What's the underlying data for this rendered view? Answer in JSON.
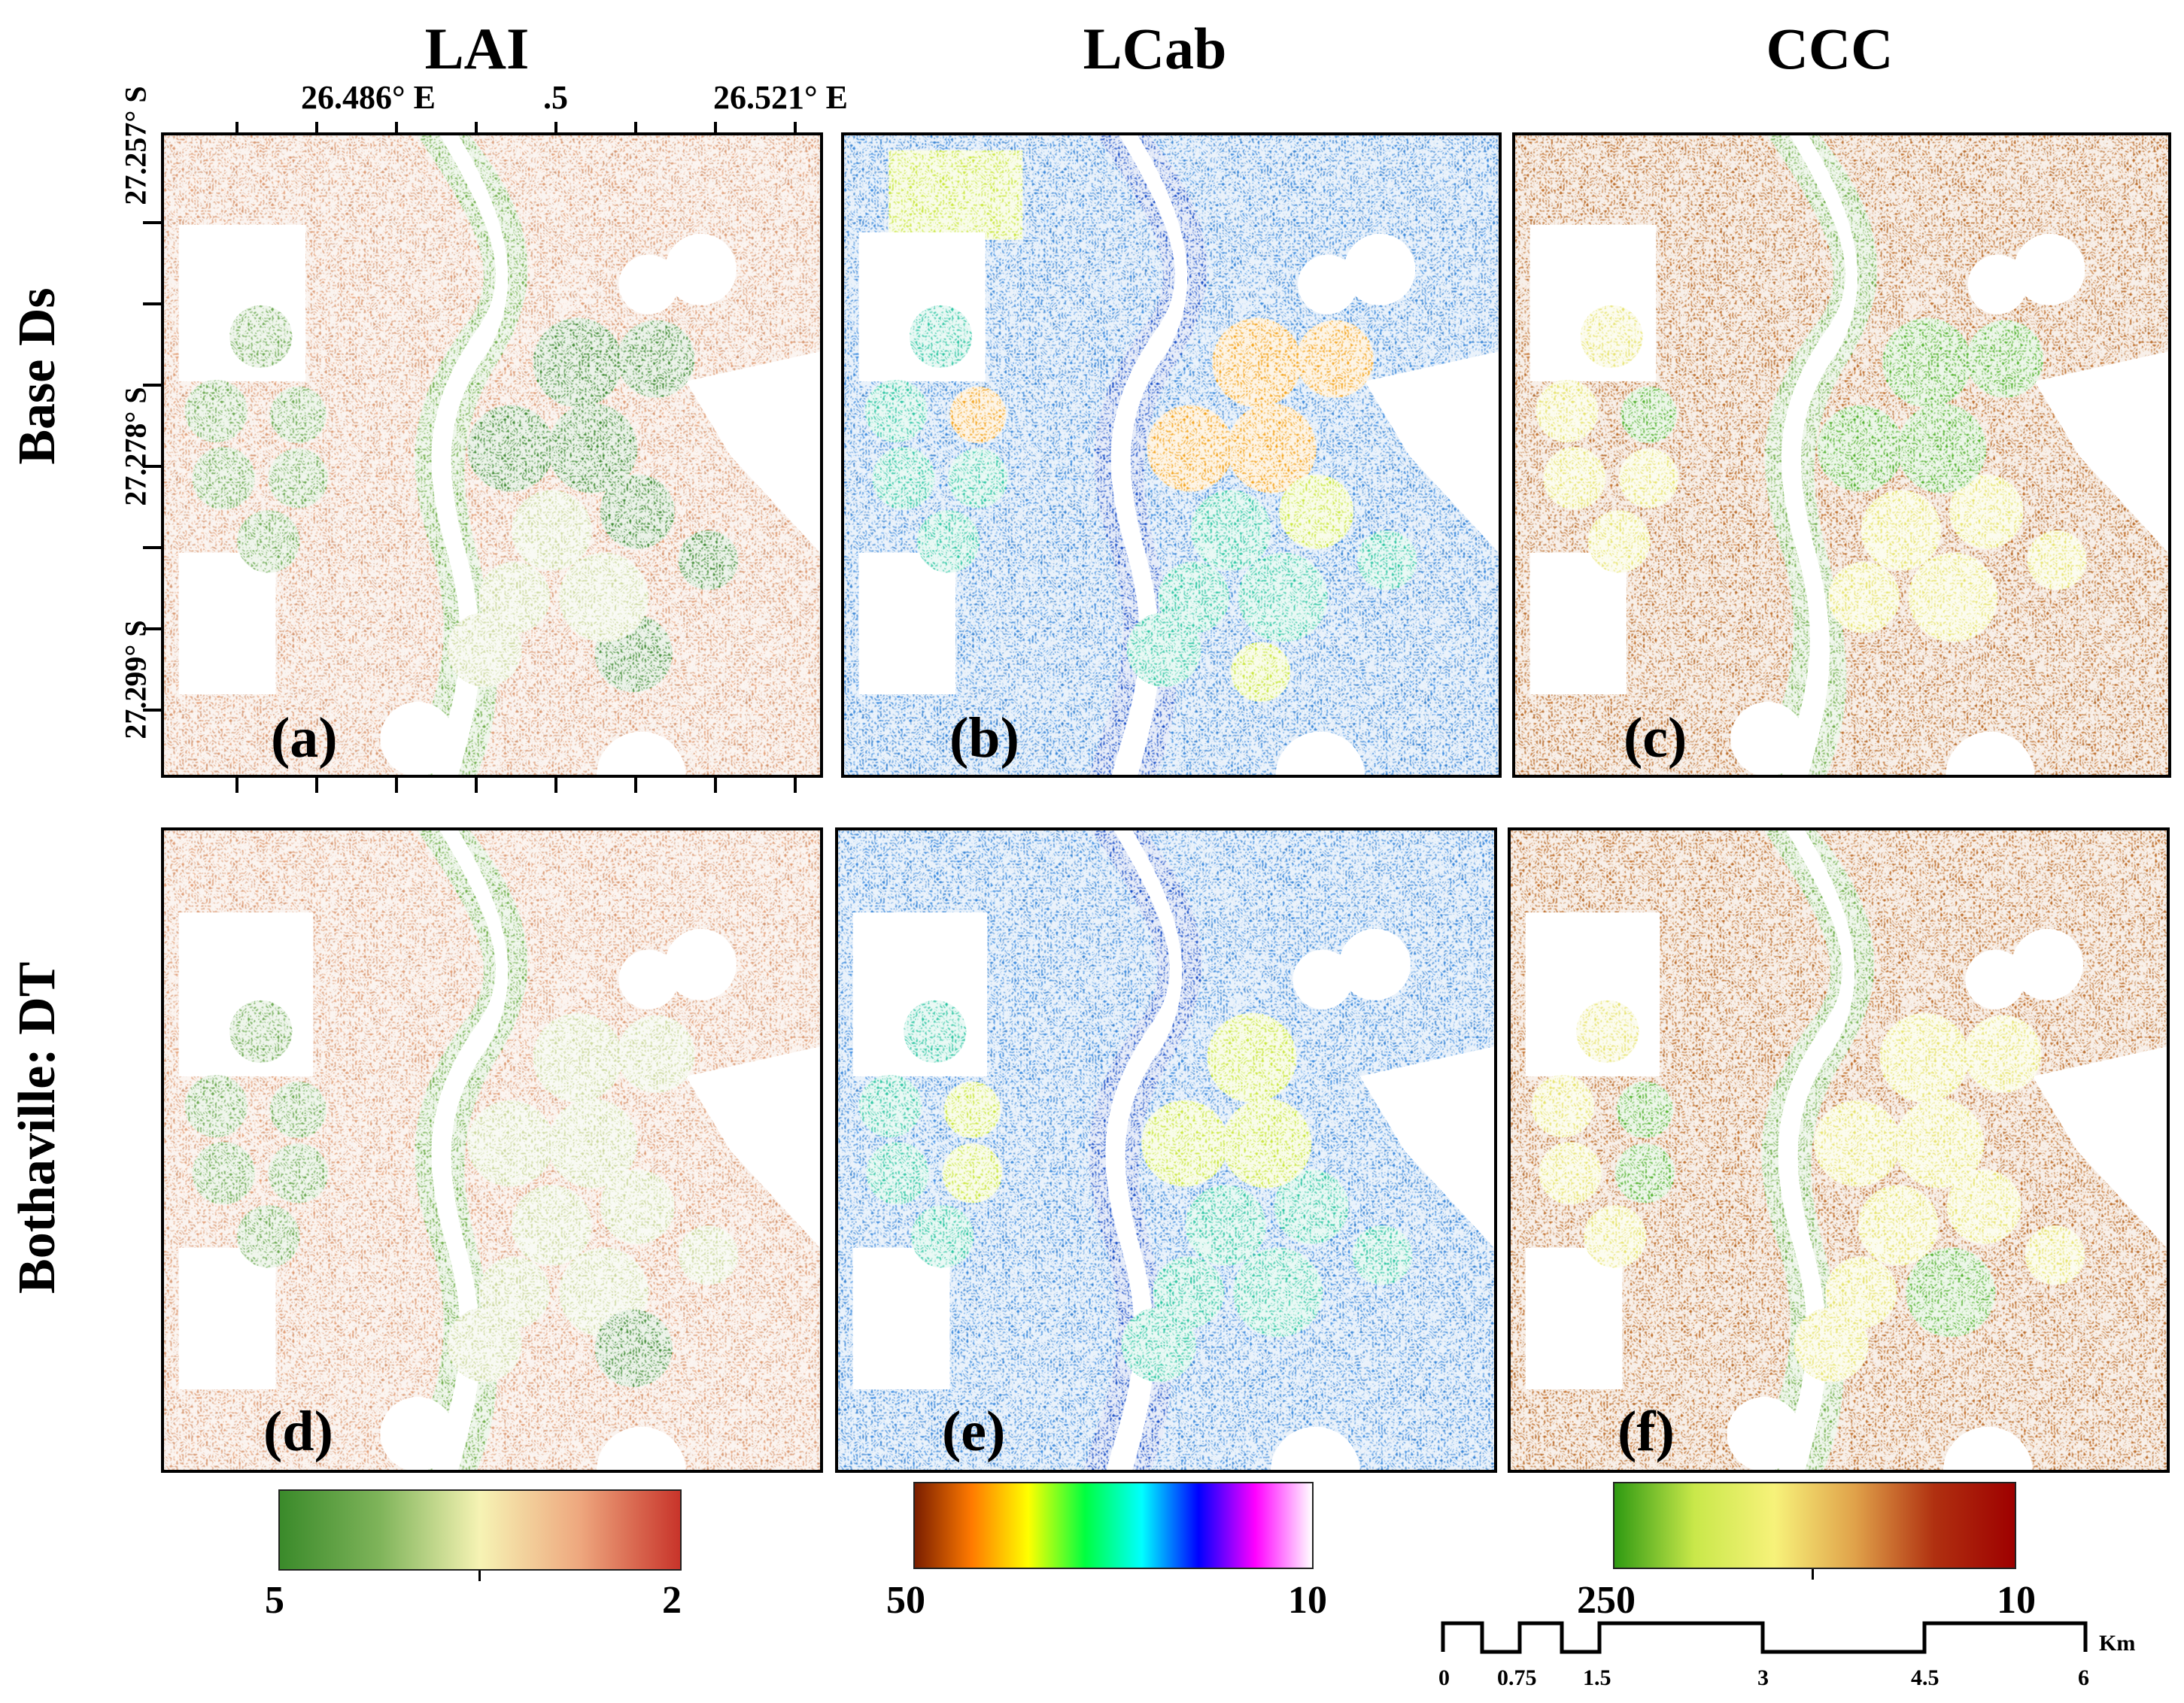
{
  "columns": {
    "lai": "LAI",
    "lcab": "LCab",
    "ccc": "CCC"
  },
  "rows": {
    "top": "Base Ds",
    "bottom": "Bothaville: DT"
  },
  "lon_labels": [
    "26.486° E",
    ".5",
    "26.521° E"
  ],
  "lat_labels": [
    "27.257° S",
    "27.278° S",
    "27.299° S"
  ],
  "panel_labels": [
    "(a)",
    "(b)",
    "(c)",
    "(d)",
    "(e)",
    "(f)"
  ],
  "colorbars": {
    "lai": {
      "min": "5",
      "max": "2",
      "colors": [
        "#3a8a2a",
        "#7fb45a",
        "#f6f3b4",
        "#eea77e",
        "#c8342a"
      ]
    },
    "lcab": {
      "min": "50",
      "max": "10",
      "colors": [
        "#7a1e00",
        "#ff7a00",
        "#ffff00",
        "#00ff40",
        "#00ffff",
        "#0000ff",
        "#ff00ff",
        "#ffffff"
      ]
    },
    "ccc": {
      "min": "250",
      "max": "10",
      "colors": [
        "#2f9a12",
        "#c9e84a",
        "#f7f27a",
        "#e0a24a",
        "#b03010",
        "#9e0000"
      ]
    }
  },
  "scalebar": {
    "unit": "Km",
    "labels": [
      "0",
      "0.75",
      "1.5",
      "3",
      "4.5",
      "6"
    ]
  },
  "palette": {
    "lai_bg": "#e8a37a",
    "lai_field": "#6aa84f",
    "lai_dark": "#3f8a32",
    "lai_light": "#c9d69a",
    "lcab_bg": "#3d8fe6",
    "lcab_field": "#29c4a0",
    "lcab_orange": "#f3a21a",
    "lcab_yellow": "#c8e63a",
    "ccc_bg": "#c8742e",
    "ccc_field": "#e6e26a",
    "ccc_green": "#4fb02a",
    "river": "#ffffff",
    "riparian": "#6fae4a"
  }
}
